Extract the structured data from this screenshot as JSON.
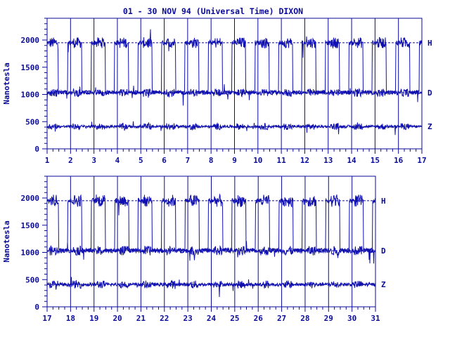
{
  "title": "01 - 30 NOV 94 (Universal Time) DIXON",
  "colors": {
    "ink": "#0a0a99",
    "trace": "#1010b0",
    "background": "#ffffff"
  },
  "chart_data": [
    {
      "type": "line",
      "ylabel": "Nanotesla",
      "ylim": [
        0,
        2400
      ],
      "yticks": [
        "0",
        "500",
        "1000",
        "1500",
        "2000"
      ],
      "xticks": [
        "1",
        "2",
        "3",
        "4",
        "5",
        "6",
        "7",
        "8",
        "9",
        "10",
        "11",
        "12",
        "13",
        "14",
        "15",
        "16",
        "17"
      ],
      "xlim": [
        1,
        17
      ],
      "grid": true,
      "series": [
        {
          "name": "H",
          "baseline": 1950,
          "quiet_low": 1050,
          "variability": 150
        },
        {
          "name": "D",
          "baseline": 1030,
          "variability": 110
        },
        {
          "name": "Z",
          "baseline": 410,
          "variability": 90
        }
      ]
    },
    {
      "type": "line",
      "ylabel": "Nanotesla",
      "ylim": [
        0,
        2400
      ],
      "yticks": [
        "0",
        "500",
        "1000",
        "1500",
        "2000"
      ],
      "xticks": [
        "17",
        "18",
        "19",
        "20",
        "21",
        "22",
        "23",
        "24",
        "25",
        "26",
        "27",
        "28",
        "29",
        "30",
        "31"
      ],
      "xlim": [
        17,
        31
      ],
      "grid": true,
      "series": [
        {
          "name": "H",
          "baseline": 1950,
          "quiet_low": 1050,
          "variability": 170
        },
        {
          "name": "D",
          "baseline": 1030,
          "variability": 130
        },
        {
          "name": "Z",
          "baseline": 410,
          "variability": 110
        }
      ]
    }
  ]
}
